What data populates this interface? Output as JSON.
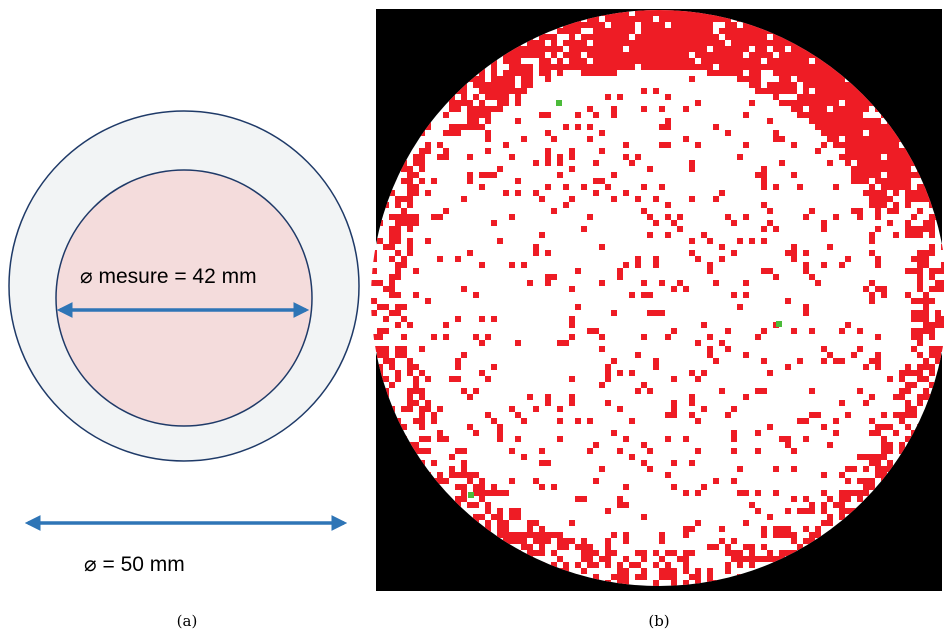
{
  "panel_a": {
    "inner_diameter_label": "⌀ mesure = 42 mm",
    "outer_diameter_label": "⌀ = 50 mm",
    "caption": "(a)",
    "colors": {
      "outer_ring_fill": "#f2f4f5",
      "inner_disc_fill": "#f4dcdc",
      "circle_stroke": "#1f3a68",
      "arrow": "#2e75b6"
    }
  },
  "panel_b": {
    "caption": "(b)",
    "colors": {
      "background": "#000000",
      "good_pixels": "#ffffff",
      "defect_pixels": "#ee1c25",
      "marker_pixels": "#4cbb3a"
    }
  }
}
